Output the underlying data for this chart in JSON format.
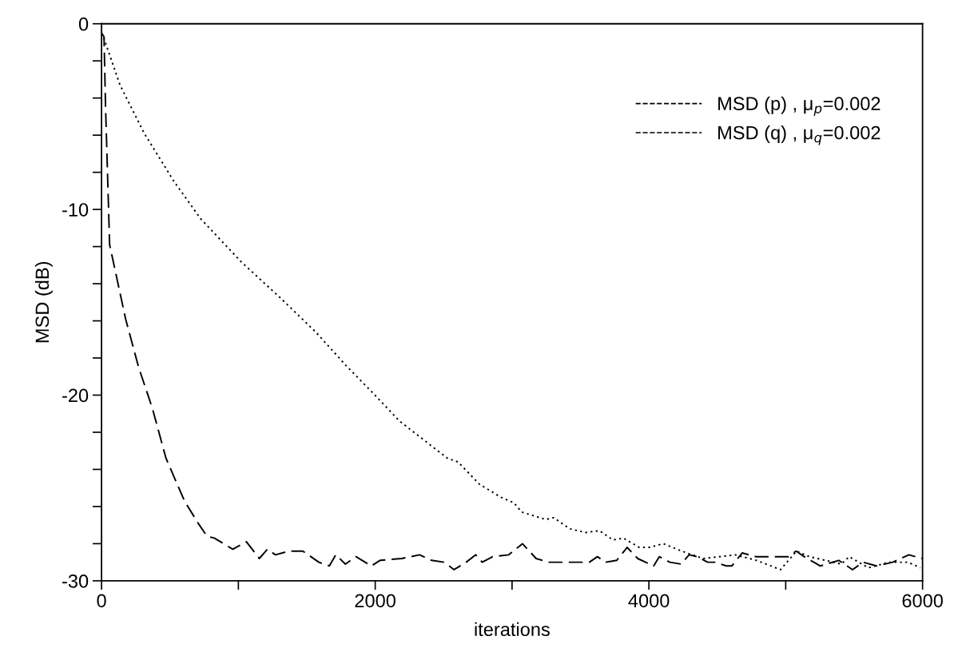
{
  "chart_data": {
    "type": "line",
    "xlabel": "iterations",
    "ylabel": "MSD (dB)",
    "xlim": [
      0,
      6000
    ],
    "ylim": [
      -30,
      0
    ],
    "xticks": [
      0,
      {
        "value": 1000,
        "label": null
      },
      2000,
      {
        "value": 3000,
        "label": null
      },
      4000,
      {
        "value": 5000,
        "label": null
      },
      6000
    ],
    "yticks": [
      0,
      {
        "value": -2,
        "label": null
      },
      {
        "value": -4,
        "label": null
      },
      {
        "value": -6,
        "label": null
      },
      {
        "value": -8,
        "label": null
      },
      -10,
      {
        "value": -12,
        "label": null
      },
      {
        "value": -14,
        "label": null
      },
      {
        "value": -16,
        "label": null
      },
      {
        "value": -18,
        "label": null
      },
      -20,
      {
        "value": -22,
        "label": null
      },
      {
        "value": -24,
        "label": null
      },
      {
        "value": -26,
        "label": null
      },
      {
        "value": -28,
        "label": null
      },
      -30
    ],
    "grid": false,
    "legend": "top right",
    "marker": "none",
    "series": [
      {
        "name": "MSD (p) , μ$_{p}$=0.002",
        "color": "#000000",
        "line_style": "dotted",
        "x": [
          0,
          18,
          135,
          312,
          530,
          724,
          1018,
          1312,
          1565,
          1786,
          1985,
          2178,
          2370,
          2528,
          2605,
          2762,
          2919,
          3013,
          3071,
          3247,
          3305,
          3422,
          3539,
          3638,
          3738,
          3814,
          3930,
          4006,
          4105,
          4239,
          4397,
          4630,
          4787,
          4962,
          5079,
          5173,
          5406,
          5464,
          5604,
          5756,
          5895,
          5983
        ],
        "values": [
          -0.5,
          -0.8,
          -3.3,
          -5.9,
          -8.5,
          -10.5,
          -12.8,
          -14.8,
          -16.6,
          -18.4,
          -19.9,
          -21.4,
          -22.5,
          -23.4,
          -23.6,
          -24.8,
          -25.5,
          -25.8,
          -26.3,
          -26.7,
          -26.6,
          -27.2,
          -27.4,
          -27.3,
          -27.8,
          -27.7,
          -28.2,
          -28.2,
          -28.0,
          -28.4,
          -28.8,
          -28.6,
          -28.9,
          -29.4,
          -28.4,
          -28.7,
          -29.1,
          -28.7,
          -29.3,
          -29.0,
          -29.0,
          -29.3
        ]
      },
      {
        "name": "MSD (q) , μ$_{q}$=0.002",
        "color": "#000000",
        "line_style": "dashed",
        "x": [
          0,
          18,
          29,
          59,
          176,
          271,
          371,
          471,
          606,
          706,
          771,
          824,
          959,
          1059,
          1153,
          1212,
          1271,
          1371,
          1471,
          1588,
          1665,
          1712,
          1782,
          1859,
          1971,
          2035,
          2194,
          2324,
          2412,
          2506,
          2576,
          2665,
          2735,
          2782,
          2859,
          2976,
          3076,
          3176,
          3270,
          3470,
          3565,
          3624,
          3682,
          3765,
          3841,
          3918,
          4035,
          4076,
          4153,
          4235,
          4294,
          4353,
          4429,
          4488,
          4565,
          4606,
          4682,
          4782,
          4882,
          5018,
          5076,
          5135,
          5253,
          5388,
          5488,
          5565,
          5665,
          5782,
          5900,
          5998
        ],
        "values": [
          -0.5,
          -0.7,
          -4.4,
          -11.9,
          -15.9,
          -18.5,
          -20.7,
          -23.4,
          -25.7,
          -26.9,
          -27.6,
          -27.7,
          -28.3,
          -27.9,
          -28.8,
          -28.3,
          -28.6,
          -28.4,
          -28.4,
          -29.0,
          -29.2,
          -28.6,
          -29.1,
          -28.7,
          -29.2,
          -28.9,
          -28.8,
          -28.6,
          -28.9,
          -29.0,
          -29.4,
          -29.0,
          -28.6,
          -29.0,
          -28.7,
          -28.6,
          -28.0,
          -28.8,
          -29.0,
          -29.0,
          -29.0,
          -28.7,
          -29.0,
          -28.9,
          -28.2,
          -28.8,
          -29.2,
          -28.7,
          -29.0,
          -29.1,
          -28.6,
          -28.7,
          -29.0,
          -29.0,
          -29.2,
          -29.2,
          -28.5,
          -28.7,
          -28.7,
          -28.7,
          -28.4,
          -28.7,
          -29.2,
          -28.9,
          -29.4,
          -29.0,
          -29.2,
          -29.0,
          -28.6,
          -28.8
        ]
      }
    ]
  }
}
